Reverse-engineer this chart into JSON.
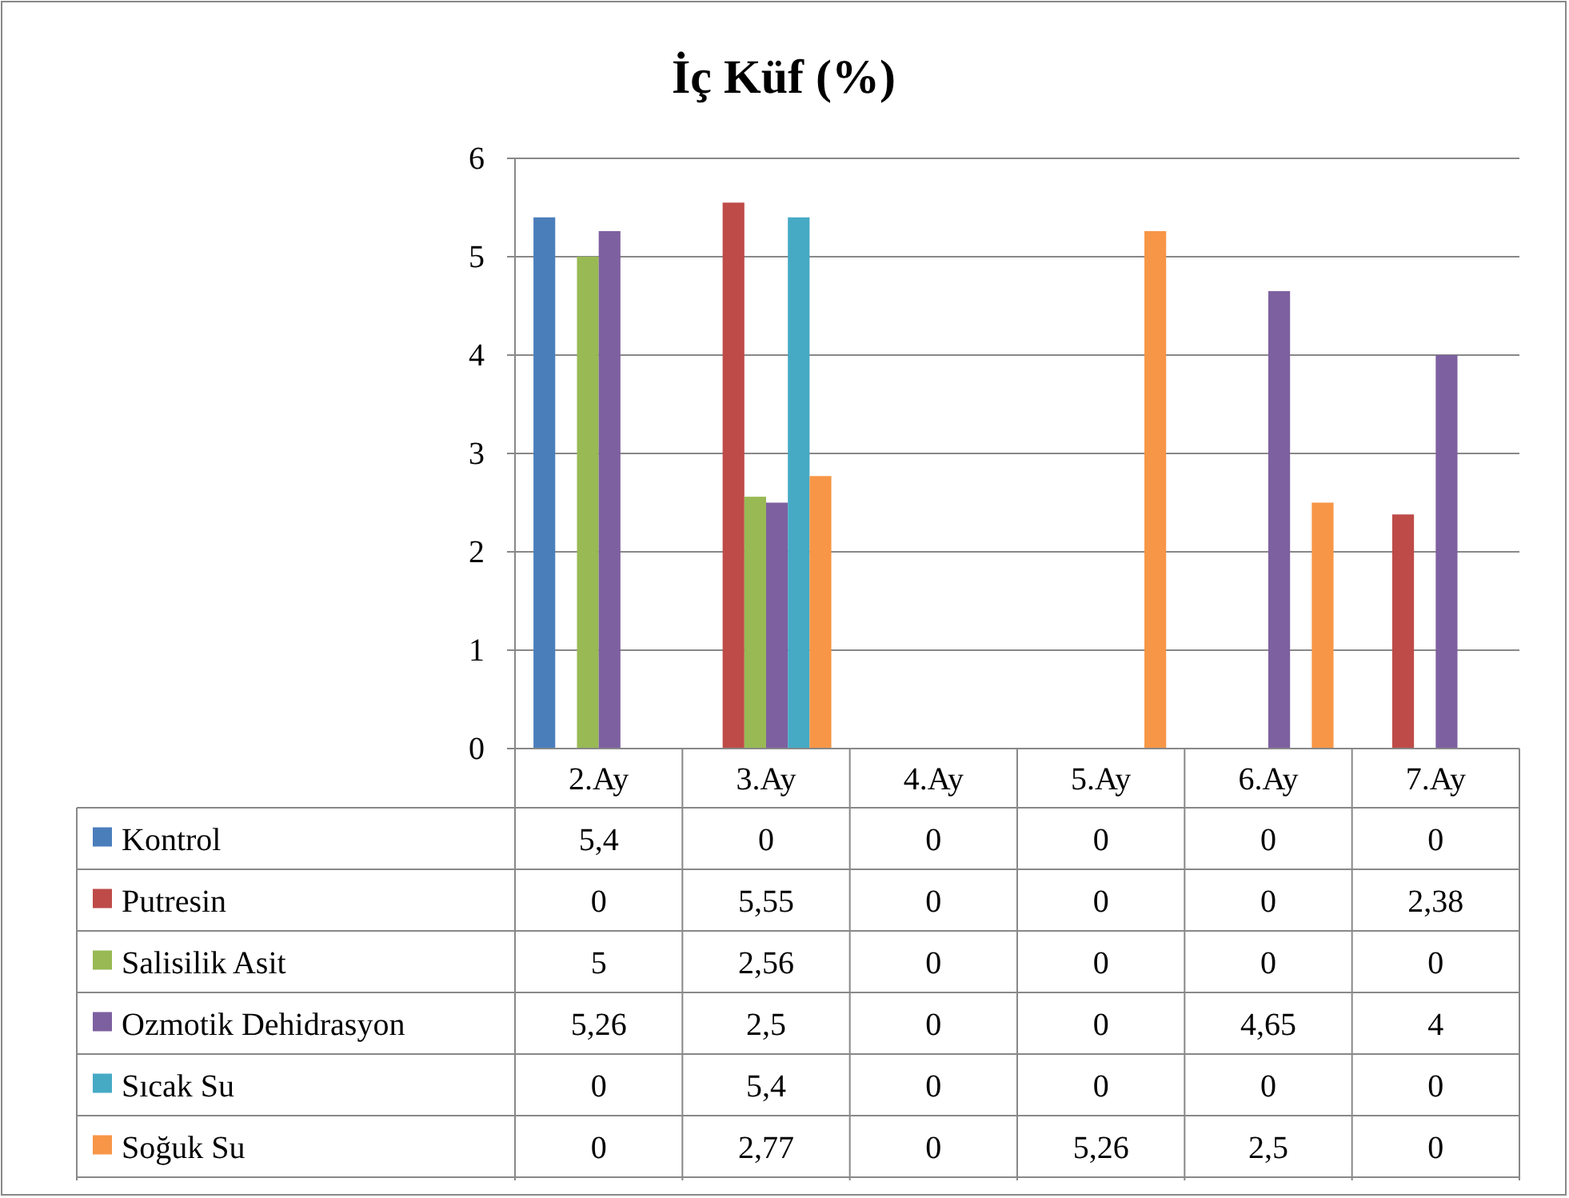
{
  "chart_data": {
    "type": "bar",
    "title": "İç Küf (%)",
    "categories": [
      "2.Ay",
      "3.Ay",
      "4.Ay",
      "5.Ay",
      "6.Ay",
      "7.Ay"
    ],
    "series": [
      {
        "name": "Kontrol",
        "color": "#4a7ebb",
        "values": [
          5.4,
          0,
          0,
          0,
          0,
          0
        ],
        "value_labels": [
          "5,4",
          "0",
          "0",
          "0",
          "0",
          "0"
        ]
      },
      {
        "name": "Putresin",
        "color": "#be4b48",
        "values": [
          0,
          5.55,
          0,
          0,
          0,
          2.38
        ],
        "value_labels": [
          "0",
          "5,55",
          "0",
          "0",
          "0",
          "2,38"
        ]
      },
      {
        "name": "Salisilik Asit",
        "color": "#98b954",
        "values": [
          5,
          2.56,
          0,
          0,
          0,
          0
        ],
        "value_labels": [
          "5",
          "2,56",
          "0",
          "0",
          "0",
          "0"
        ]
      },
      {
        "name": "Ozmotik Dehidrasyon",
        "color": "#7d60a0",
        "values": [
          5.26,
          2.5,
          0,
          0,
          4.65,
          4
        ],
        "value_labels": [
          "5,26",
          "2,5",
          "0",
          "0",
          "4,65",
          "4"
        ]
      },
      {
        "name": "Sıcak Su",
        "color": "#46aac5",
        "values": [
          0,
          5.4,
          0,
          0,
          0,
          0
        ],
        "value_labels": [
          "0",
          "5,4",
          "0",
          "0",
          "0",
          "0"
        ]
      },
      {
        "name": "Soğuk Su",
        "color": "#f79646",
        "values": [
          0,
          2.77,
          0,
          5.26,
          2.5,
          0
        ],
        "value_labels": [
          "0",
          "2,77",
          "0",
          "5,26",
          "2,5",
          "0"
        ]
      }
    ],
    "ylim": [
      0,
      6
    ],
    "yticks": [
      0,
      1,
      2,
      3,
      4,
      5,
      6
    ],
    "grid": "y",
    "legend": "bottom"
  }
}
